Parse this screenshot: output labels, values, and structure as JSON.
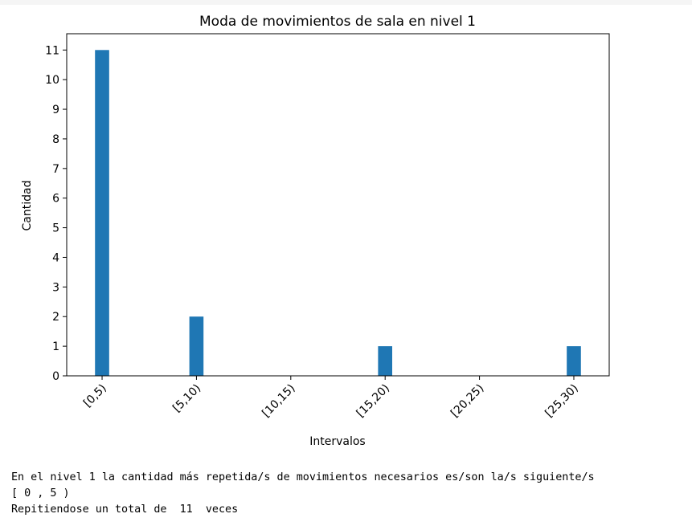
{
  "chart_data": {
    "type": "bar",
    "title": "Moda de movimientos de sala en nivel 1",
    "xlabel": "Intervalos",
    "ylabel": "Cantidad",
    "categories": [
      "[0,5)",
      "[5,10)",
      "[10,15)",
      "[15,20)",
      "[20,25)",
      "[25,30)"
    ],
    "values": [
      11,
      2,
      0,
      1,
      0,
      1
    ],
    "ylim": [
      0,
      11.55
    ],
    "yticks": [
      0,
      1,
      2,
      3,
      4,
      5,
      6,
      7,
      8,
      9,
      10,
      11
    ],
    "bar_color": "#1f77b4",
    "grid": false,
    "legend": "none"
  },
  "output": {
    "line1": "En el nivel 1 la cantidad más repetida/s de movimientos necesarios es/son la/s siguiente/s",
    "line2": "[ 0 , 5 )",
    "line3": "Repitiendose un total de  11  veces"
  }
}
